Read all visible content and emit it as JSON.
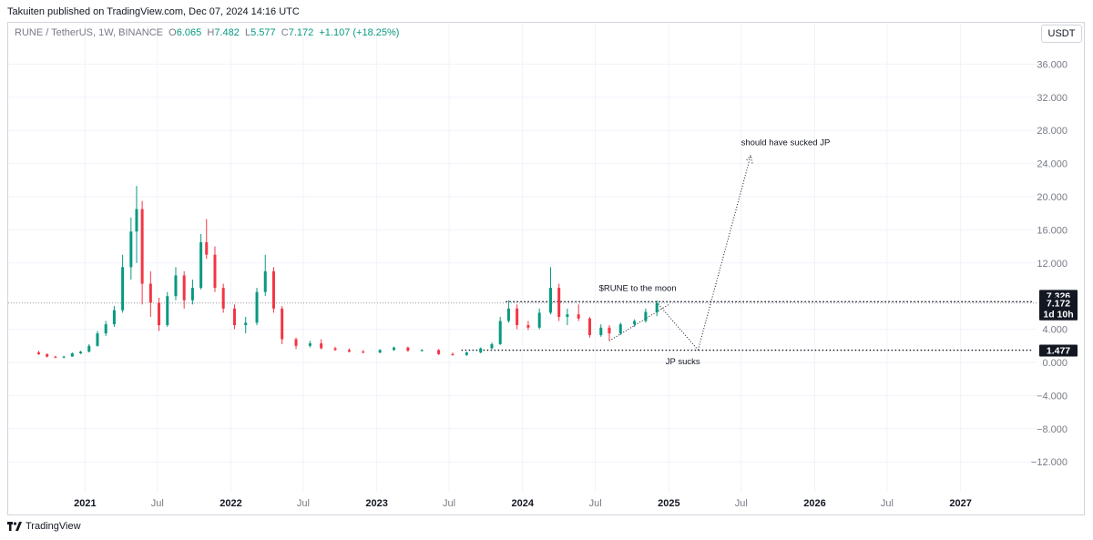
{
  "header": {
    "published_by": "Takuiten published on TradingView.com, Dec 07, 2024 14:16 UTC"
  },
  "legend": {
    "symbol": "RUNE / TetherUS, 1W, BINANCE",
    "o_label": "O",
    "o_value": "6.065",
    "h_label": "H",
    "h_value": "7.482",
    "l_label": "L",
    "l_value": "5.577",
    "c_label": "C",
    "c_value": "7.172",
    "change": "+1.107 (+18.25%)"
  },
  "currency_button": "USDT",
  "footer": {
    "brand": "TradingView"
  },
  "colors": {
    "up": "#089981",
    "down": "#f23645",
    "grid": "#f0f3fa",
    "axis_text": "#787b86"
  },
  "chart_data": {
    "type": "candlestick",
    "timeframe": "1W",
    "ylim": [
      -14,
      38
    ],
    "x_range": [
      "2020-07-20",
      "2027-07-01"
    ],
    "y_ticks": [
      36,
      32,
      28,
      24,
      20,
      16,
      12,
      4,
      0,
      -4,
      -8,
      -12
    ],
    "y_tick_labels": [
      "36.000",
      "32.000",
      "28.000",
      "24.000",
      "20.000",
      "16.000",
      "12.000",
      "4.000",
      "0.000",
      "−4.000",
      "−8.000",
      "−12.000"
    ],
    "x_ticks": [
      {
        "label": "2021",
        "date": "2021-01-01",
        "bold": true
      },
      {
        "label": "Jul",
        "date": "2021-07-01",
        "bold": false
      },
      {
        "label": "2022",
        "date": "2022-01-01",
        "bold": true
      },
      {
        "label": "Jul",
        "date": "2022-07-01",
        "bold": false
      },
      {
        "label": "2023",
        "date": "2023-01-01",
        "bold": true
      },
      {
        "label": "Jul",
        "date": "2023-07-01",
        "bold": false
      },
      {
        "label": "2024",
        "date": "2024-01-01",
        "bold": true
      },
      {
        "label": "Jul",
        "date": "2024-07-01",
        "bold": false
      },
      {
        "label": "2025",
        "date": "2025-01-01",
        "bold": true
      },
      {
        "label": "Jul",
        "date": "2025-07-01",
        "bold": false
      },
      {
        "label": "2026",
        "date": "2026-01-01",
        "bold": true
      },
      {
        "label": "Jul",
        "date": "2026-07-01",
        "bold": false
      },
      {
        "label": "2027",
        "date": "2027-01-01",
        "bold": true
      }
    ],
    "price_labels": [
      {
        "value": 7.326,
        "text": "7.326",
        "style": "dark"
      },
      {
        "value": 7.172,
        "text": "7.172",
        "style": "dark"
      },
      {
        "text": "1d 10h",
        "style": "dark"
      },
      {
        "value": 1.477,
        "text": "1.477",
        "style": "dark"
      }
    ],
    "current_price_line": 7.172,
    "close_series": [
      {
        "date": "2020-09-07",
        "o": 1.2,
        "h": 1.4,
        "l": 0.9,
        "c": 1.0
      },
      {
        "date": "2020-09-28",
        "o": 1.0,
        "h": 1.1,
        "l": 0.6,
        "c": 0.7
      },
      {
        "date": "2020-10-19",
        "o": 0.7,
        "h": 0.8,
        "l": 0.5,
        "c": 0.6
      },
      {
        "date": "2020-11-09",
        "o": 0.6,
        "h": 0.8,
        "l": 0.5,
        "c": 0.7
      },
      {
        "date": "2020-11-30",
        "o": 0.7,
        "h": 1.2,
        "l": 0.7,
        "c": 1.1
      },
      {
        "date": "2020-12-21",
        "o": 1.1,
        "h": 1.4,
        "l": 1.0,
        "c": 1.3
      },
      {
        "date": "2021-01-11",
        "o": 1.3,
        "h": 2.2,
        "l": 1.2,
        "c": 2.0
      },
      {
        "date": "2021-02-01",
        "o": 2.0,
        "h": 3.8,
        "l": 1.9,
        "c": 3.5
      },
      {
        "date": "2021-02-22",
        "o": 3.5,
        "h": 5.0,
        "l": 3.2,
        "c": 4.6
      },
      {
        "date": "2021-03-15",
        "o": 4.6,
        "h": 6.8,
        "l": 4.3,
        "c": 6.3
      },
      {
        "date": "2021-04-05",
        "o": 6.3,
        "h": 13.0,
        "l": 6.0,
        "c": 11.5
      },
      {
        "date": "2021-04-26",
        "o": 11.5,
        "h": 17.5,
        "l": 10.0,
        "c": 15.8
      },
      {
        "date": "2021-05-10",
        "o": 15.8,
        "h": 21.3,
        "l": 12.0,
        "c": 18.5
      },
      {
        "date": "2021-05-24",
        "o": 18.5,
        "h": 19.5,
        "l": 7.0,
        "c": 9.5
      },
      {
        "date": "2021-06-14",
        "o": 9.5,
        "h": 11.0,
        "l": 5.5,
        "c": 7.2
      },
      {
        "date": "2021-07-05",
        "o": 7.2,
        "h": 7.8,
        "l": 3.8,
        "c": 4.5
      },
      {
        "date": "2021-07-26",
        "o": 4.5,
        "h": 8.5,
        "l": 4.3,
        "c": 8.0
      },
      {
        "date": "2021-08-16",
        "o": 8.0,
        "h": 11.5,
        "l": 7.5,
        "c": 10.5
      },
      {
        "date": "2021-09-06",
        "o": 10.5,
        "h": 11.0,
        "l": 6.5,
        "c": 7.5
      },
      {
        "date": "2021-09-27",
        "o": 7.5,
        "h": 10.0,
        "l": 7.0,
        "c": 9.0
      },
      {
        "date": "2021-10-18",
        "o": 9.0,
        "h": 15.5,
        "l": 8.8,
        "c": 14.5
      },
      {
        "date": "2021-11-01",
        "o": 14.5,
        "h": 17.3,
        "l": 12.5,
        "c": 13.0
      },
      {
        "date": "2021-11-22",
        "o": 13.0,
        "h": 14.0,
        "l": 8.5,
        "c": 9.0
      },
      {
        "date": "2021-12-13",
        "o": 9.0,
        "h": 9.5,
        "l": 6.0,
        "c": 6.5
      },
      {
        "date": "2022-01-10",
        "o": 6.5,
        "h": 7.0,
        "l": 4.0,
        "c": 4.5
      },
      {
        "date": "2022-02-07",
        "o": 4.5,
        "h": 5.5,
        "l": 3.5,
        "c": 4.8
      },
      {
        "date": "2022-03-07",
        "o": 4.8,
        "h": 9.0,
        "l": 4.5,
        "c": 8.5
      },
      {
        "date": "2022-03-28",
        "o": 8.5,
        "h": 13.0,
        "l": 8.0,
        "c": 11.0
      },
      {
        "date": "2022-04-18",
        "o": 11.0,
        "h": 11.5,
        "l": 6.0,
        "c": 6.5
      },
      {
        "date": "2022-05-09",
        "o": 6.5,
        "h": 6.8,
        "l": 2.2,
        "c": 2.8
      },
      {
        "date": "2022-06-13",
        "o": 2.8,
        "h": 3.0,
        "l": 1.6,
        "c": 2.0
      },
      {
        "date": "2022-07-18",
        "o": 2.0,
        "h": 2.6,
        "l": 1.8,
        "c": 2.3
      },
      {
        "date": "2022-08-15",
        "o": 2.3,
        "h": 2.8,
        "l": 1.6,
        "c": 1.7
      },
      {
        "date": "2022-09-19",
        "o": 1.7,
        "h": 1.9,
        "l": 1.4,
        "c": 1.5
      },
      {
        "date": "2022-10-24",
        "o": 1.5,
        "h": 1.7,
        "l": 1.2,
        "c": 1.3
      },
      {
        "date": "2022-11-28",
        "o": 1.3,
        "h": 1.5,
        "l": 1.1,
        "c": 1.2
      },
      {
        "date": "2023-01-09",
        "o": 1.2,
        "h": 1.6,
        "l": 1.1,
        "c": 1.5
      },
      {
        "date": "2023-02-13",
        "o": 1.5,
        "h": 1.9,
        "l": 1.4,
        "c": 1.8
      },
      {
        "date": "2023-03-20",
        "o": 1.8,
        "h": 1.9,
        "l": 1.3,
        "c": 1.4
      },
      {
        "date": "2023-04-24",
        "o": 1.4,
        "h": 1.6,
        "l": 1.3,
        "c": 1.5
      },
      {
        "date": "2023-06-05",
        "o": 1.5,
        "h": 1.6,
        "l": 0.9,
        "c": 1.0
      },
      {
        "date": "2023-07-10",
        "o": 1.0,
        "h": 1.2,
        "l": 0.8,
        "c": 0.9
      },
      {
        "date": "2023-08-14",
        "o": 0.9,
        "h": 1.3,
        "l": 0.8,
        "c": 1.2
      },
      {
        "date": "2023-09-18",
        "o": 1.2,
        "h": 1.8,
        "l": 1.1,
        "c": 1.7
      },
      {
        "date": "2023-10-16",
        "o": 1.7,
        "h": 2.4,
        "l": 1.6,
        "c": 2.2
      },
      {
        "date": "2023-11-06",
        "o": 2.2,
        "h": 5.5,
        "l": 2.1,
        "c": 5.0
      },
      {
        "date": "2023-11-27",
        "o": 5.0,
        "h": 7.5,
        "l": 4.8,
        "c": 6.5
      },
      {
        "date": "2023-12-18",
        "o": 6.5,
        "h": 7.0,
        "l": 4.0,
        "c": 4.5
      },
      {
        "date": "2024-01-15",
        "o": 4.5,
        "h": 5.0,
        "l": 3.9,
        "c": 4.2
      },
      {
        "date": "2024-02-12",
        "o": 4.2,
        "h": 6.5,
        "l": 4.0,
        "c": 6.0
      },
      {
        "date": "2024-03-11",
        "o": 6.0,
        "h": 11.5,
        "l": 5.8,
        "c": 9.0
      },
      {
        "date": "2024-04-01",
        "o": 9.0,
        "h": 9.5,
        "l": 5.0,
        "c": 5.5
      },
      {
        "date": "2024-04-22",
        "o": 5.5,
        "h": 6.5,
        "l": 4.5,
        "c": 5.8
      },
      {
        "date": "2024-05-20",
        "o": 5.8,
        "h": 7.0,
        "l": 5.0,
        "c": 5.3
      },
      {
        "date": "2024-06-17",
        "o": 5.3,
        "h": 5.5,
        "l": 3.0,
        "c": 3.3
      },
      {
        "date": "2024-07-15",
        "o": 3.3,
        "h": 4.6,
        "l": 3.1,
        "c": 4.2
      },
      {
        "date": "2024-08-05",
        "o": 4.2,
        "h": 4.5,
        "l": 2.6,
        "c": 3.5
      },
      {
        "date": "2024-09-02",
        "o": 3.5,
        "h": 4.8,
        "l": 3.3,
        "c": 4.6
      },
      {
        "date": "2024-10-07",
        "o": 4.6,
        "h": 5.2,
        "l": 4.3,
        "c": 5.0
      },
      {
        "date": "2024-11-04",
        "o": 5.0,
        "h": 6.5,
        "l": 4.8,
        "c": 6.1
      },
      {
        "date": "2024-12-02",
        "o": 6.065,
        "h": 7.482,
        "l": 5.577,
        "c": 7.172
      }
    ],
    "annotations": [
      {
        "text": "$RUNE to the moon",
        "date": "2024-10-15",
        "value": 8.6
      },
      {
        "text": "JP sucks",
        "date": "2025-02-05",
        "value": -0.2
      },
      {
        "text": "should have sucked JP",
        "date": "2025-10-20",
        "value": 26.2
      }
    ],
    "lines": [
      {
        "from": {
          "date": "2023-11-20",
          "value": 7.326
        },
        "to": {
          "date": "2027-07-01",
          "value": 7.326
        },
        "style": "dotted"
      },
      {
        "from": {
          "date": "2023-08-01",
          "value": 1.477
        },
        "to": {
          "date": "2027-07-01",
          "value": 1.477
        },
        "style": "dotted"
      },
      {
        "from": {
          "date": "2024-08-05",
          "value": 2.6
        },
        "to": {
          "date": "2025-01-01",
          "value": 7.0
        },
        "style": "dotted"
      },
      {
        "from": {
          "date": "2024-12-01",
          "value": 7.3
        },
        "to": {
          "date": "2025-03-15",
          "value": 1.5
        },
        "style": "dotted"
      },
      {
        "from": {
          "date": "2025-03-15",
          "value": 1.5
        },
        "to": {
          "date": "2025-07-25",
          "value": 25.0
        },
        "style": "dotted-arrow"
      }
    ]
  }
}
